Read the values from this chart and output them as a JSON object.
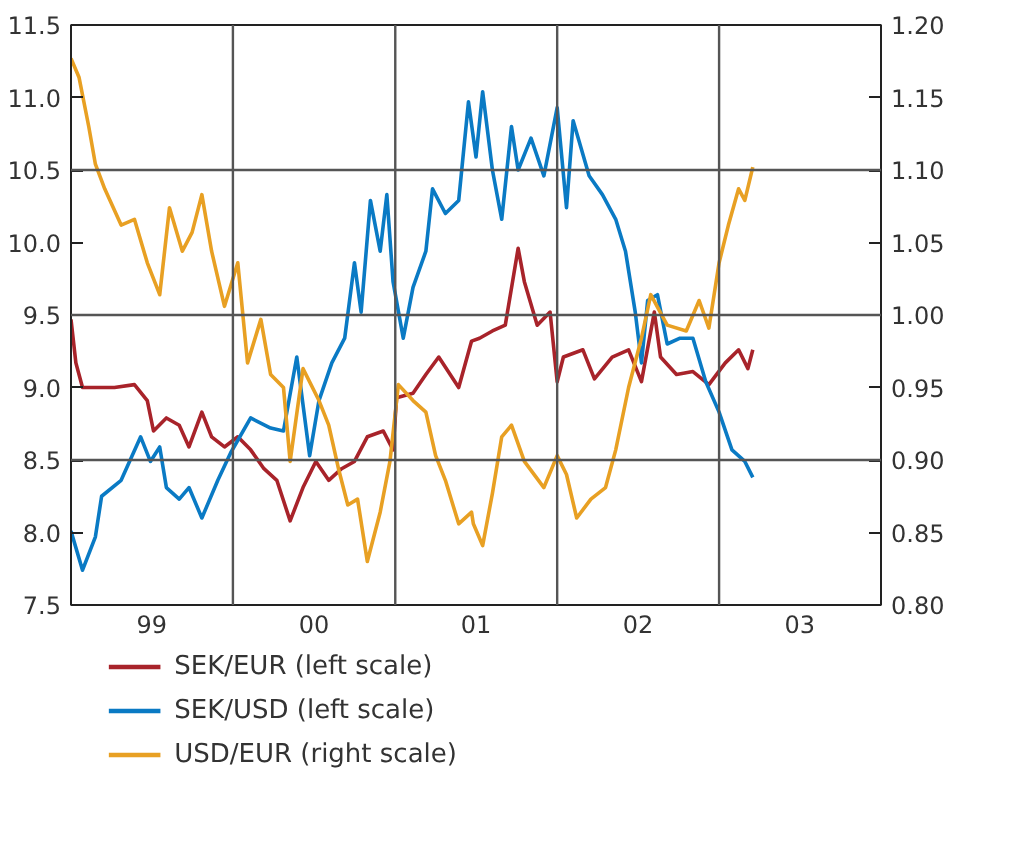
{
  "chart_data": {
    "type": "line",
    "xlim": [
      "1999-01-01",
      "2004-01-01"
    ],
    "xticks": [
      {
        "value": "1999-07-02",
        "label": "99"
      },
      {
        "value": "2000-07-02",
        "label": "00"
      },
      {
        "value": "2001-07-02",
        "label": "01"
      },
      {
        "value": "2002-07-02",
        "label": "02"
      },
      {
        "value": "2003-07-02",
        "label": "03"
      }
    ],
    "ylim": [
      7.5,
      11.5
    ],
    "yticks": [
      7.5,
      {
        "value": 8,
        "label": "8.0"
      },
      8.5,
      {
        "value": 9,
        "label": "9.0"
      },
      9.5,
      {
        "value": 10,
        "label": "10.0"
      },
      10.5,
      {
        "value": 11,
        "label": "11.0"
      },
      11.5
    ],
    "y2lim": [
      0.8,
      1.2
    ],
    "y2ticks": [
      {
        "value": 0.8,
        "label": "0.80"
      },
      0.85,
      {
        "value": 0.9,
        "label": "0.90"
      },
      0.95,
      {
        "value": 1,
        "label": "1.00"
      },
      1.05,
      {
        "value": 1.1,
        "label": "1.10"
      },
      1.15,
      {
        "value": 1.2,
        "label": "1.20"
      }
    ],
    "legend": "bottom",
    "line_style": "solid",
    "ref_lines": [
      {
        "axis": "x",
        "value": "2000-01-01",
        "color": "#555555"
      },
      {
        "axis": "x",
        "value": "2001-01-01",
        "color": "#555555"
      },
      {
        "axis": "x",
        "value": "2002-01-01",
        "color": "#555555"
      },
      {
        "axis": "x",
        "value": "2003-01-01",
        "color": "#555555"
      },
      {
        "axis": "y",
        "value": 8.5,
        "color": "#555555"
      },
      {
        "axis": "y",
        "value": 9.5,
        "color": "#555555"
      },
      {
        "axis": "y",
        "value": 10.5,
        "color": "#555555"
      }
    ],
    "series": [
      {
        "name": "SEK/EUR (left scale)",
        "color": "#a8232a",
        "axis": "y",
        "x": [
          "1999-01-01",
          "1999-01-12",
          "1999-01-27",
          "1999-02-10",
          "1999-04-09",
          "1999-05-24",
          "1999-06-22",
          "1999-07-06",
          "1999-08-04",
          "1999-09-02",
          "1999-09-24",
          "1999-10-23",
          "1999-11-14",
          "1999-12-13",
          "2000-01-12",
          "2000-02-10",
          "2000-03-11",
          "2000-04-09",
          "2000-05-09",
          "2000-06-07",
          "2000-07-06",
          "2000-08-04",
          "2000-09-02",
          "2000-10-01",
          "2000-10-30",
          "2000-12-05",
          "2000-12-27",
          "2001-01-04",
          "2001-02-10",
          "2001-03-11",
          "2001-04-09",
          "2001-05-24",
          "2001-06-22",
          "2001-07-10",
          "2001-08-08",
          "2001-09-06",
          "2001-10-05",
          "2001-10-19",
          "2001-11-17",
          "2001-12-16",
          "2002-01-01",
          "2002-01-15",
          "2002-02-28",
          "2002-03-26",
          "2002-05-05",
          "2002-06-11",
          "2002-07-10",
          "2002-08-08",
          "2002-08-22",
          "2002-09-27",
          "2002-11-03",
          "2002-12-09",
          "2003-01-15",
          "2003-02-14",
          "2003-03-07",
          "2003-03-18"
        ],
        "values": [
          9.47,
          9.17,
          9.0,
          9.0,
          9.0,
          9.02,
          8.91,
          8.7,
          8.79,
          8.74,
          8.59,
          8.83,
          8.66,
          8.59,
          8.66,
          8.57,
          8.44,
          8.36,
          8.08,
          8.31,
          8.49,
          8.36,
          8.44,
          8.49,
          8.66,
          8.7,
          8.57,
          8.93,
          8.96,
          9.09,
          9.21,
          9.0,
          9.32,
          9.34,
          9.39,
          9.43,
          9.96,
          9.73,
          9.43,
          9.52,
          9.04,
          9.21,
          9.26,
          9.06,
          9.21,
          9.26,
          9.04,
          9.52,
          9.21,
          9.09,
          9.11,
          9.02,
          9.17,
          9.26,
          9.13,
          9.26
        ]
      },
      {
        "name": "SEK/USD (left scale)",
        "color": "#0a7ac4",
        "axis": "y",
        "x": [
          "1999-01-01",
          "1999-01-27",
          "1999-02-25",
          "1999-03-11",
          "1999-04-24",
          "1999-06-07",
          "1999-06-29",
          "1999-07-20",
          "1999-08-04",
          "1999-09-02",
          "1999-09-24",
          "1999-10-23",
          "1999-11-28",
          "1999-12-27",
          "2000-02-10",
          "2000-03-26",
          "2000-04-24",
          "2000-05-24",
          "2000-06-22",
          "2000-07-13",
          "2000-08-11",
          "2000-09-09",
          "2000-10-01",
          "2000-10-16",
          "2000-11-06",
          "2000-11-28",
          "2000-12-13",
          "2000-12-27",
          "2001-01-19",
          "2001-02-10",
          "2001-03-11",
          "2001-03-26",
          "2001-04-24",
          "2001-05-24",
          "2001-06-15",
          "2001-07-02",
          "2001-07-17",
          "2001-08-08",
          "2001-08-29",
          "2001-09-20",
          "2001-10-05",
          "2001-11-03",
          "2001-12-02",
          "2002-01-01",
          "2002-01-22",
          "2002-02-06",
          "2002-03-14",
          "2002-04-13",
          "2002-05-13",
          "2002-06-04",
          "2002-06-26",
          "2002-07-10",
          "2002-07-24",
          "2002-08-15",
          "2002-09-06",
          "2002-10-05",
          "2002-11-03",
          "2002-12-02",
          "2003-01-01",
          "2003-01-30",
          "2003-02-28",
          "2003-03-18"
        ],
        "values": [
          8.01,
          7.74,
          7.97,
          8.25,
          8.36,
          8.66,
          8.49,
          8.59,
          8.31,
          8.23,
          8.31,
          8.1,
          8.36,
          8.55,
          8.79,
          8.72,
          8.7,
          9.21,
          8.53,
          8.91,
          9.17,
          9.34,
          9.86,
          9.52,
          10.29,
          9.94,
          10.33,
          9.73,
          9.34,
          9.69,
          9.94,
          10.37,
          10.2,
          10.29,
          10.97,
          10.59,
          11.04,
          10.5,
          10.16,
          10.8,
          10.5,
          10.72,
          10.46,
          10.93,
          10.24,
          10.84,
          10.46,
          10.33,
          10.16,
          9.94,
          9.52,
          9.17,
          9.6,
          9.64,
          9.3,
          9.34,
          9.34,
          9.04,
          8.83,
          8.57,
          8.49,
          8.38
        ]
      },
      {
        "name": "USD/EUR (right scale)",
        "color": "#e8a023",
        "axis": "y2",
        "x": [
          "1999-01-01",
          "1999-01-19",
          "1999-02-10",
          "1999-02-25",
          "1999-03-18",
          "1999-04-24",
          "1999-05-24",
          "1999-06-22",
          "1999-07-20",
          "1999-08-11",
          "1999-09-09",
          "1999-10-01",
          "1999-10-23",
          "1999-11-14",
          "1999-12-13",
          "2000-01-12",
          "2000-02-03",
          "2000-03-04",
          "2000-03-26",
          "2000-04-24",
          "2000-05-09",
          "2000-06-07",
          "2000-07-13",
          "2000-08-04",
          "2000-08-26",
          "2000-09-16",
          "2000-10-08",
          "2000-10-30",
          "2000-11-28",
          "2000-12-20",
          "2001-01-08",
          "2001-02-10",
          "2001-03-11",
          "2001-04-02",
          "2001-04-24",
          "2001-05-24",
          "2001-06-22",
          "2001-06-26",
          "2001-07-17",
          "2001-08-08",
          "2001-08-29",
          "2001-09-20",
          "2001-10-19",
          "2001-12-02",
          "2002-01-01",
          "2002-01-22",
          "2002-02-14",
          "2002-03-18",
          "2002-04-20",
          "2002-05-13",
          "2002-06-11",
          "2002-07-10",
          "2002-07-31",
          "2002-09-06",
          "2002-10-19",
          "2002-11-17",
          "2002-12-09",
          "2003-01-01",
          "2003-01-22",
          "2003-02-14",
          "2003-02-28",
          "2003-03-18"
        ],
        "values": [
          1.177,
          1.164,
          1.13,
          1.104,
          1.087,
          1.062,
          1.066,
          1.036,
          1.014,
          1.074,
          1.044,
          1.057,
          1.083,
          1.044,
          1.006,
          1.036,
          0.967,
          0.997,
          0.959,
          0.95,
          0.899,
          0.963,
          0.941,
          0.924,
          0.894,
          0.869,
          0.873,
          0.83,
          0.864,
          0.899,
          0.952,
          0.941,
          0.933,
          0.903,
          0.886,
          0.856,
          0.864,
          0.856,
          0.841,
          0.877,
          0.916,
          0.924,
          0.899,
          0.881,
          0.903,
          0.89,
          0.86,
          0.873,
          0.881,
          0.907,
          0.95,
          0.984,
          1.014,
          0.993,
          0.989,
          1.01,
          0.991,
          1.036,
          1.062,
          1.087,
          1.079,
          1.102
        ]
      }
    ]
  }
}
